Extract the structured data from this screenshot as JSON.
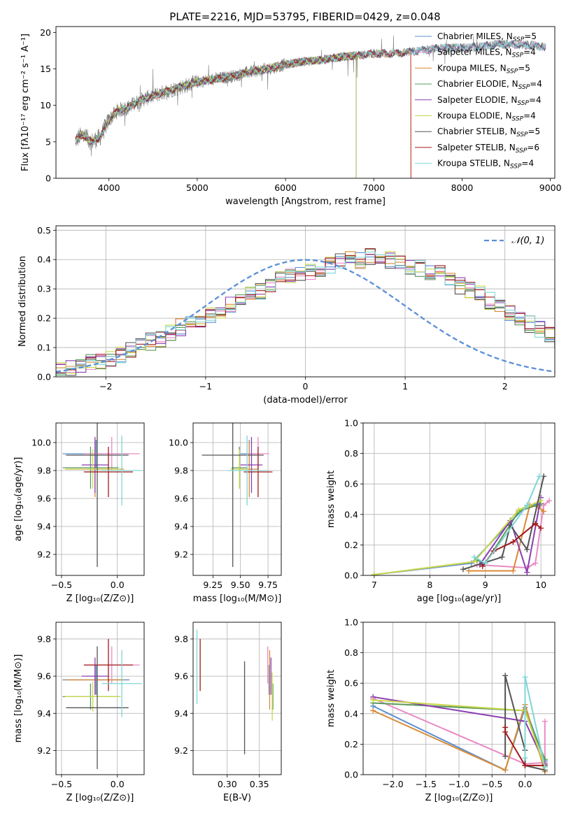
{
  "figure": {
    "title": "PLATE=2216, MJD=53795, FIBERID=0429, z=0.048"
  },
  "colors": {
    "chabrier_miles": "#5b8fd6",
    "salpeter_miles": "#e98ac4",
    "kroupa_miles": "#d98b35",
    "chabrier_elodie": "#5a9a5a",
    "salpeter_elodie": "#8a3fb0",
    "kroupa_elodie": "#c8d64a",
    "chabrier_stelib": "#555555",
    "salpeter_stelib": "#a11a1a",
    "kroupa_stelib": "#7fd6d6",
    "grid": "#b0b0b0"
  },
  "chart_data": [
    {
      "id": "spectrum",
      "type": "line",
      "title": "PLATE=2216, MJD=53795, FIBERID=0429, z=0.048",
      "xlabel": "wavelength [Angstrom, rest frame]",
      "ylabel": "Flux [fλ10⁻¹⁷ erg cm⁻² s⁻¹ A⁻¹]",
      "xlim": [
        3400,
        9050
      ],
      "ylim": [
        0,
        20.8
      ],
      "xticks": [
        4000,
        5000,
        6000,
        7000,
        8000,
        9000
      ],
      "yticks": [
        0,
        5,
        10,
        15,
        20
      ],
      "legend_position": "top-right",
      "grid": false,
      "observed_continuum": {
        "x": [
          3620,
          3700,
          3800,
          3900,
          4000,
          4100,
          4200,
          4300,
          4400,
          4500,
          4600,
          4700,
          4800,
          4900,
          5000,
          5200,
          5400,
          5600,
          5800,
          6000,
          6200,
          6400,
          6600,
          6800,
          7000,
          7200,
          7400,
          7600,
          7800,
          8000,
          8200,
          8400,
          8600,
          8800,
          8950
        ],
        "y": [
          5.2,
          6.0,
          5.0,
          5.6,
          8.0,
          9.3,
          9.6,
          10.3,
          10.9,
          11.3,
          11.7,
          12.1,
          12.5,
          12.8,
          13.2,
          13.6,
          14.0,
          14.6,
          15.0,
          15.6,
          16.0,
          16.2,
          16.6,
          16.8,
          17.1,
          17.1,
          17.3,
          17.6,
          17.9,
          17.9,
          18.0,
          18.4,
          18.3,
          18.2,
          18.0
        ]
      },
      "series": [
        {
          "name": "Chabrier MILES, N_SSP=5",
          "label_main": "Chabrier MILES, N",
          "label_sub": "SSP",
          "label_tail": "=5",
          "color_key": "chabrier_miles",
          "xmax": 8950
        },
        {
          "name": "Salpeter MILES, N_SSP=4",
          "label_main": "Salpeter MILES, N",
          "label_sub": "SSP",
          "label_tail": "=4",
          "color_key": "salpeter_miles",
          "xmax": 8950
        },
        {
          "name": "Kroupa MILES, N_SSP=5",
          "label_main": "Kroupa MILES, N",
          "label_sub": "SSP",
          "label_tail": "=5",
          "color_key": "kroupa_miles",
          "xmax": 7420
        },
        {
          "name": "Chabrier ELODIE, N_SSP=4",
          "label_main": "Chabrier ELODIE, N",
          "label_sub": "SSP",
          "label_tail": "=4",
          "color_key": "chabrier_elodie",
          "xmax": 6800
        },
        {
          "name": "Salpeter ELODIE, N_SSP=4",
          "label_main": "Salpeter ELODIE, N",
          "label_sub": "SSP",
          "label_tail": "=4",
          "color_key": "salpeter_elodie",
          "xmax": 6800
        },
        {
          "name": "Kroupa ELODIE, N_SSP=4",
          "label_main": "Kroupa ELODIE, N",
          "label_sub": "SSP",
          "label_tail": "=4",
          "color_key": "kroupa_elodie",
          "xmax": 6800
        },
        {
          "name": "Chabrier STELIB, N_SSP=5",
          "label_main": "Chabrier STELIB, N",
          "label_sub": "SSP",
          "label_tail": "=5",
          "color_key": "chabrier_stelib",
          "xmax": 8950
        },
        {
          "name": "Salpeter STELIB, N_SSP=6",
          "label_main": "Salpeter STELIB, N",
          "label_sub": "SSP",
          "label_tail": "=6",
          "color_key": "salpeter_stelib",
          "xmax": 7420
        },
        {
          "name": "Kroupa STELIB, N_SSP=4",
          "label_main": "Kroupa STELIB, N",
          "label_sub": "SSP",
          "label_tail": "=4",
          "color_key": "kroupa_stelib",
          "xmax": 8950
        }
      ]
    },
    {
      "id": "residuals",
      "type": "histogram",
      "xlabel": "(data-model)/error",
      "ylabel": "Normed distribution",
      "xlim": [
        -2.5,
        2.5
      ],
      "ylim": [
        0,
        0.515
      ],
      "xticks": [
        -2,
        -1,
        0,
        1,
        2
      ],
      "xtick_labels": [
        "−2",
        "−1",
        "0",
        "1",
        "2"
      ],
      "yticks": [
        0.0,
        0.1,
        0.2,
        0.3,
        0.4,
        0.5
      ],
      "ytick_labels": [
        "0.0",
        "0.1",
        "0.2",
        "0.3",
        "0.4",
        "0.5"
      ],
      "grid": true,
      "bin_width": 0.1,
      "bin_start": -2.5,
      "base_density": [
        0.02,
        0.03,
        0.04,
        0.05,
        0.055,
        0.06,
        0.075,
        0.09,
        0.11,
        0.12,
        0.13,
        0.15,
        0.17,
        0.19,
        0.2,
        0.21,
        0.23,
        0.25,
        0.26,
        0.28,
        0.29,
        0.31,
        0.33,
        0.34,
        0.35,
        0.36,
        0.37,
        0.38,
        0.39,
        0.4,
        0.4,
        0.41,
        0.4,
        0.4,
        0.39,
        0.38,
        0.37,
        0.36,
        0.35,
        0.33,
        0.31,
        0.3,
        0.28,
        0.26,
        0.24,
        0.22,
        0.2,
        0.18,
        0.16,
        0.14,
        0.12,
        0.1,
        0.09,
        0.08,
        0.07,
        0.05,
        0.04,
        0.035,
        0.03,
        0.025
      ],
      "reference_curve": {
        "name": "N(0,1)",
        "label": "𝒩(0, 1)",
        "mean": 0,
        "sigma": 1,
        "color_key": "chabrier_miles"
      }
    },
    {
      "id": "age_vs_Z",
      "type": "errorbar",
      "xlabel": "Z [log₁₀(Z/Z⊙)]",
      "ylabel": "age  [log₁₀(age/yr)]",
      "xlim": [
        -0.55,
        0.24
      ],
      "ylim": [
        9.05,
        10.14
      ],
      "xticks": [
        -0.5,
        0.0
      ],
      "xtick_labels": [
        "−0.5",
        "0.0"
      ],
      "yticks": [
        9.2,
        9.4,
        9.6,
        9.8,
        10.0
      ],
      "grid": true,
      "points": [
        {
          "color_key": "chabrier_miles",
          "x": -0.19,
          "xerr": 0.3,
          "y": 9.92,
          "yerr": 0.1
        },
        {
          "color_key": "salpeter_miles",
          "x": -0.05,
          "xerr": 0.25,
          "y": 9.92,
          "yerr": 0.12
        },
        {
          "color_key": "kroupa_miles",
          "x": -0.2,
          "xerr": 0.26,
          "y": 9.81,
          "yerr": 0.2
        },
        {
          "color_key": "chabrier_elodie",
          "x": -0.24,
          "xerr": 0.25,
          "y": 9.82,
          "yerr": 0.15
        },
        {
          "color_key": "salpeter_elodie",
          "x": -0.2,
          "xerr": 0.12,
          "y": 9.84,
          "yerr": 0.2
        },
        {
          "color_key": "kroupa_elodie",
          "x": -0.22,
          "xerr": 0.25,
          "y": 9.81,
          "yerr": 0.14
        },
        {
          "color_key": "chabrier_stelib",
          "x": -0.18,
          "xerr": 0.28,
          "y": 9.91,
          "yerr": 0.8
        },
        {
          "color_key": "salpeter_stelib",
          "x": -0.08,
          "xerr": 0.22,
          "y": 9.79,
          "yerr": 0.18
        },
        {
          "color_key": "kroupa_stelib",
          "x": 0.04,
          "xerr": 0.18,
          "y": 9.8,
          "yerr": 0.25
        }
      ]
    },
    {
      "id": "age_vs_mass",
      "type": "errorbar",
      "xlabel": "mass [log₁₀(M/M⊙)]",
      "ylabel": "",
      "xlim": [
        9.07,
        9.87
      ],
      "ylim": [
        9.05,
        10.14
      ],
      "xticks": [
        9.25,
        9.5,
        9.75
      ],
      "xtick_labels": [
        "9.25",
        "9.50",
        "9.75"
      ],
      "yticks": [
        9.2,
        9.4,
        9.6,
        9.8,
        10.0
      ],
      "grid": true,
      "points": [
        {
          "color_key": "chabrier_miles",
          "x": 9.58,
          "xerr": 0.08,
          "y": 9.92,
          "yerr": 0.1
        },
        {
          "color_key": "salpeter_miles",
          "x": 9.66,
          "xerr": 0.1,
          "y": 9.92,
          "yerr": 0.12
        },
        {
          "color_key": "kroupa_miles",
          "x": 9.58,
          "xerr": 0.08,
          "y": 9.81,
          "yerr": 0.2
        },
        {
          "color_key": "chabrier_elodie",
          "x": 9.49,
          "xerr": 0.07,
          "y": 9.82,
          "yerr": 0.15
        },
        {
          "color_key": "salpeter_elodie",
          "x": 9.6,
          "xerr": 0.1,
          "y": 9.84,
          "yerr": 0.2
        },
        {
          "color_key": "kroupa_elodie",
          "x": 9.49,
          "xerr": 0.08,
          "y": 9.81,
          "yerr": 0.14
        },
        {
          "color_key": "chabrier_stelib",
          "x": 9.43,
          "xerr": 0.28,
          "y": 9.91,
          "yerr": 0.8
        },
        {
          "color_key": "salpeter_stelib",
          "x": 9.66,
          "xerr": 0.13,
          "y": 9.79,
          "yerr": 0.18
        },
        {
          "color_key": "kroupa_stelib",
          "x": 9.56,
          "xerr": 0.18,
          "y": 9.8,
          "yerr": 0.25
        }
      ]
    },
    {
      "id": "weight_vs_age",
      "type": "line",
      "xlabel": "age  [log₁₀(age/yr)]",
      "ylabel": "mass weight",
      "xlim": [
        6.8,
        10.25
      ],
      "ylim": [
        0,
        1.0
      ],
      "xticks": [
        7,
        8,
        9,
        10
      ],
      "yticks": [
        0.0,
        0.2,
        0.4,
        0.6,
        0.8,
        1.0
      ],
      "grid": true,
      "series": [
        {
          "color_key": "chabrier_miles",
          "x": [
            7.0,
            8.75,
            9.45,
            9.75,
            10.0
          ],
          "y": [
            0.005,
            0.08,
            0.35,
            0.46,
            0.47
          ]
        },
        {
          "color_key": "salpeter_miles",
          "x": [
            8.85,
            9.75,
            9.9,
            10.05,
            10.15
          ],
          "y": [
            0.07,
            0.05,
            0.08,
            0.46,
            0.49
          ]
        },
        {
          "color_key": "kroupa_miles",
          "x": [
            8.7,
            9.5,
            9.8,
            9.95,
            10.05
          ],
          "y": [
            0.03,
            0.03,
            0.46,
            0.45,
            0.42
          ]
        },
        {
          "color_key": "chabrier_elodie",
          "x": [
            8.85,
            9.0,
            9.6,
            10.0
          ],
          "y": [
            0.1,
            0.08,
            0.42,
            0.47
          ]
        },
        {
          "color_key": "salpeter_elodie",
          "x": [
            8.9,
            9.45,
            9.75,
            10.0
          ],
          "y": [
            0.07,
            0.36,
            0.02,
            0.51
          ]
        },
        {
          "color_key": "kroupa_elodie",
          "x": [
            7.0,
            8.8,
            9.6,
            10.0
          ],
          "y": [
            0.005,
            0.09,
            0.43,
            0.49
          ]
        },
        {
          "color_key": "chabrier_stelib",
          "x": [
            8.6,
            9.3,
            9.45,
            9.75,
            10.05
          ],
          "y": [
            0.04,
            0.12,
            0.33,
            0.17,
            0.65
          ]
        },
        {
          "color_key": "salpeter_stelib",
          "x": [
            8.95,
            9.15,
            9.5,
            9.9,
            10.0
          ],
          "y": [
            0.06,
            0.16,
            0.22,
            0.34,
            0.31
          ]
        },
        {
          "color_key": "kroupa_stelib",
          "x": [
            8.8,
            9.0,
            9.75,
            9.97
          ],
          "y": [
            0.12,
            0.08,
            0.46,
            0.65
          ]
        }
      ]
    },
    {
      "id": "mass_vs_Z",
      "type": "errorbar",
      "xlabel": "Z [log₁₀(Z/Z⊙)]",
      "ylabel": "mass [log₁₀(M/M⊙)]",
      "xlim": [
        -0.55,
        0.24
      ],
      "ylim": [
        9.07,
        9.89
      ],
      "xticks": [
        -0.5,
        0.0
      ],
      "xtick_labels": [
        "−0.5",
        "0.0"
      ],
      "yticks": [
        9.2,
        9.4,
        9.6,
        9.8
      ],
      "grid": true,
      "points": [
        {
          "color_key": "chabrier_miles",
          "x": -0.19,
          "xerr": 0.3,
          "y": 9.58,
          "yerr": 0.08
        },
        {
          "color_key": "salpeter_miles",
          "x": -0.05,
          "xerr": 0.25,
          "y": 9.66,
          "yerr": 0.1
        },
        {
          "color_key": "kroupa_miles",
          "x": -0.2,
          "xerr": 0.26,
          "y": 9.58,
          "yerr": 0.08
        },
        {
          "color_key": "chabrier_elodie",
          "x": -0.24,
          "xerr": 0.25,
          "y": 9.49,
          "yerr": 0.07
        },
        {
          "color_key": "salpeter_elodie",
          "x": -0.2,
          "xerr": 0.12,
          "y": 9.6,
          "yerr": 0.1
        },
        {
          "color_key": "kroupa_elodie",
          "x": -0.22,
          "xerr": 0.25,
          "y": 9.49,
          "yerr": 0.08
        },
        {
          "color_key": "chabrier_stelib",
          "x": -0.18,
          "xerr": 0.28,
          "y": 9.43,
          "yerr": 0.33
        },
        {
          "color_key": "salpeter_stelib",
          "x": -0.08,
          "xerr": 0.22,
          "y": 9.66,
          "yerr": 0.14
        },
        {
          "color_key": "kroupa_stelib",
          "x": 0.04,
          "xerr": 0.18,
          "y": 9.56,
          "yerr": 0.18
        }
      ]
    },
    {
      "id": "mass_vs_ebv",
      "type": "errorbar",
      "xlabel": "E(B-V)",
      "ylabel": "",
      "xlim": [
        0.247,
        0.384
      ],
      "ylim": [
        9.07,
        9.89
      ],
      "xticks": [
        0.3,
        0.35
      ],
      "xtick_labels": [
        "0.30",
        "0.35"
      ],
      "yticks": [
        9.2,
        9.4,
        9.6,
        9.8
      ],
      "grid": true,
      "points": [
        {
          "color_key": "chabrier_miles",
          "x": 0.365,
          "xerr": 0,
          "y": 9.58,
          "yerr": 0.08
        },
        {
          "color_key": "salpeter_miles",
          "x": 0.363,
          "xerr": 0,
          "y": 9.66,
          "yerr": 0.1
        },
        {
          "color_key": "kroupa_miles",
          "x": 0.366,
          "xerr": 0,
          "y": 9.58,
          "yerr": 0.16
        },
        {
          "color_key": "chabrier_elodie",
          "x": 0.371,
          "xerr": 0,
          "y": 9.49,
          "yerr": 0.07
        },
        {
          "color_key": "salpeter_elodie",
          "x": 0.368,
          "xerr": 0,
          "y": 9.6,
          "yerr": 0.1
        },
        {
          "color_key": "kroupa_elodie",
          "x": 0.37,
          "xerr": 0,
          "y": 9.49,
          "yerr": 0.13
        },
        {
          "color_key": "chabrier_stelib",
          "x": 0.327,
          "xerr": 0,
          "y": 9.43,
          "yerr": 0.25
        },
        {
          "color_key": "salpeter_stelib",
          "x": 0.258,
          "xerr": 0,
          "y": 9.66,
          "yerr": 0.14
        },
        {
          "color_key": "kroupa_stelib",
          "x": 0.253,
          "xerr": 0,
          "y": 9.65,
          "yerr": 0.2
        }
      ]
    },
    {
      "id": "weight_vs_Z",
      "type": "line",
      "xlabel": "Z [log₁₀(Z/Z⊙)]",
      "ylabel": "mass weight",
      "xlim": [
        -2.45,
        0.45
      ],
      "ylim": [
        0,
        1.0
      ],
      "xticks": [
        -2.0,
        -1.5,
        -1.0,
        -0.5,
        0.0
      ],
      "xtick_labels": [
        "−2.0",
        "−1.5",
        "−1.0",
        "−0.5",
        "0.0"
      ],
      "yticks": [
        0.0,
        0.2,
        0.4,
        0.6,
        0.8,
        1.0
      ],
      "grid": true,
      "series": [
        {
          "color_key": "chabrier_miles",
          "x": [
            -2.3,
            -0.3,
            0.0,
            0.3
          ],
          "y": [
            0.45,
            0.03,
            0.44,
            0.09
          ]
        },
        {
          "color_key": "salpeter_miles",
          "x": [
            -2.3,
            0.0,
            0.3,
            0.3
          ],
          "y": [
            0.5,
            0.07,
            0.08,
            0.35
          ]
        },
        {
          "color_key": "kroupa_miles",
          "x": [
            -2.3,
            -0.3,
            0.0,
            0.3
          ],
          "y": [
            0.42,
            0.03,
            0.46,
            0.02
          ]
        },
        {
          "color_key": "chabrier_elodie",
          "x": [
            -2.3,
            0.0,
            0.3
          ],
          "y": [
            0.47,
            0.42,
            0.1
          ]
        },
        {
          "color_key": "salpeter_elodie",
          "x": [
            -2.3,
            0.0,
            0.3
          ],
          "y": [
            0.51,
            0.35,
            0.07
          ]
        },
        {
          "color_key": "kroupa_elodie",
          "x": [
            -2.3,
            0.0,
            0.3
          ],
          "y": [
            0.49,
            0.42,
            0.05
          ]
        },
        {
          "color_key": "chabrier_stelib",
          "x": [
            -0.3,
            -0.3,
            0.0,
            0.0,
            0.3
          ],
          "y": [
            0.12,
            0.65,
            0.16,
            0.06,
            0.03
          ]
        },
        {
          "color_key": "salpeter_stelib",
          "x": [
            -0.3,
            -0.3,
            0.0,
            0.3
          ],
          "y": [
            0.31,
            0.28,
            0.06,
            0.06
          ]
        },
        {
          "color_key": "kroupa_stelib",
          "x": [
            0.0,
            0.0,
            0.3
          ],
          "y": [
            0.11,
            0.64,
            0.05
          ]
        }
      ]
    }
  ]
}
